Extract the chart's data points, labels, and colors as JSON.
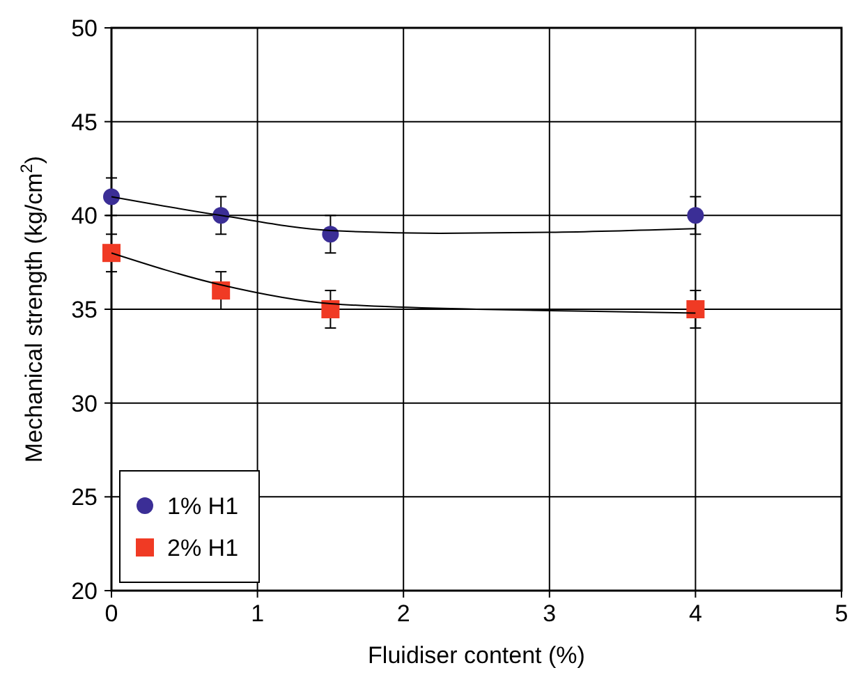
{
  "chart_data": {
    "type": "scatter",
    "xlabel": "Fluidiser content (%)",
    "ylabel": "Mechanical strength (kg/cm$^{2}$)",
    "xlim": [
      0,
      5
    ],
    "xticks": [
      0,
      1,
      2,
      3,
      4,
      5
    ],
    "ylim": [
      20,
      50
    ],
    "yticks": [
      20,
      25,
      30,
      35,
      40,
      45,
      50
    ],
    "grid": true,
    "legend": "bottom left",
    "series": [
      {
        "name": "1% H1",
        "color": "#3b2e96",
        "marker": "circle",
        "x": [
          0,
          0.75,
          1.5,
          4
        ],
        "values": [
          41,
          40,
          39,
          40
        ],
        "errors": [
          1,
          1,
          1,
          1
        ]
      },
      {
        "name": "2% H1",
        "color": "#f03a24",
        "marker": "square",
        "x": [
          0,
          0.75,
          1.5,
          4
        ],
        "values": [
          38,
          36,
          35,
          35
        ],
        "errors": [
          1,
          1,
          1,
          1
        ]
      },
      {
        "type": "line",
        "color": "#000000",
        "marker": "none",
        "x": [
          0,
          0.75,
          1.5,
          2.25,
          3,
          4
        ],
        "values": [
          41,
          40,
          39.2,
          39.05,
          39.1,
          39.3
        ]
      },
      {
        "type": "line",
        "color": "#000000",
        "marker": "none",
        "x": [
          0,
          0.75,
          1.5,
          2.5,
          3.25,
          4
        ],
        "values": [
          38,
          36.3,
          35.3,
          35,
          34.9,
          34.8
        ]
      }
    ]
  }
}
